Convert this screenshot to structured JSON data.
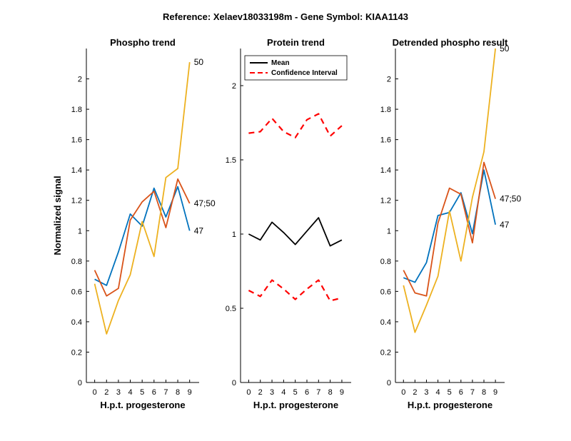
{
  "title": "Reference:  Xelaev18033198m - Gene Symbol:  KIAA1143",
  "colors": {
    "blue": "#0072BD",
    "orange": "#D95319",
    "yellow": "#EDB120",
    "mean": "#000000",
    "ci": "#FF0000"
  },
  "chart_data": [
    {
      "type": "line",
      "title": "Phospho trend",
      "xlabel": "H.p.t. progesterone",
      "ylabel": "Normalized signal",
      "x": [
        0,
        2,
        3,
        4,
        5,
        6,
        7,
        8,
        9
      ],
      "ylim": [
        0,
        2.2
      ],
      "yticks": [
        0,
        0.2,
        0.4,
        0.6,
        0.8,
        1,
        1.2,
        1.4,
        1.6,
        1.8,
        2
      ],
      "ytick_labels": [
        "0",
        "0.2",
        "0.4",
        "0.6",
        "0.8",
        "1",
        "1.2",
        "1.4",
        "1.6",
        "1.8",
        "2"
      ],
      "series": [
        {
          "name": "47",
          "color": "#0072BD",
          "values": [
            0.68,
            0.64,
            0.86,
            1.11,
            1.03,
            1.28,
            1.09,
            1.29,
            1.0
          ]
        },
        {
          "name": "47;50",
          "color": "#D95319",
          "values": [
            0.74,
            0.57,
            0.62,
            1.07,
            1.19,
            1.26,
            1.02,
            1.34,
            1.18
          ]
        },
        {
          "name": "50",
          "color": "#EDB120",
          "values": [
            0.65,
            0.32,
            0.54,
            0.71,
            1.06,
            0.83,
            1.35,
            1.41,
            2.11
          ]
        }
      ]
    },
    {
      "type": "line",
      "title": "Protein trend",
      "xlabel": "H.p.t. progesterone",
      "ylabel": "",
      "x": [
        0,
        2,
        3,
        4,
        5,
        6,
        7,
        8,
        9
      ],
      "ylim": [
        0,
        2.25
      ],
      "yticks": [
        0,
        0.5,
        1,
        1.5,
        2
      ],
      "ytick_labels": [
        "0",
        "0.5",
        "1",
        "1.5",
        "2"
      ],
      "legend": {
        "position": "top",
        "entries": [
          "Mean",
          "Confidence Interval"
        ]
      },
      "series": [
        {
          "name": "Mean",
          "color": "#000000",
          "style": "solid",
          "values": [
            1.0,
            0.96,
            1.08,
            1.01,
            0.93,
            1.02,
            1.11,
            0.92,
            0.96
          ]
        },
        {
          "name": "Confidence Interval",
          "color": "#FF0000",
          "style": "dashed",
          "values": [
            1.68,
            1.69,
            1.78,
            1.69,
            1.65,
            1.77,
            1.81,
            1.66,
            1.73
          ]
        },
        {
          "name": "Confidence Interval",
          "color": "#FF0000",
          "style": "dashed",
          "values": [
            0.62,
            0.58,
            0.69,
            0.63,
            0.56,
            0.63,
            0.69,
            0.55,
            0.57
          ]
        }
      ]
    },
    {
      "type": "line",
      "title": "Detrended phospho result",
      "xlabel": "H.p.t. progesterone",
      "ylabel": "",
      "x": [
        0,
        2,
        3,
        4,
        5,
        6,
        7,
        8,
        9
      ],
      "ylim": [
        0,
        2.2
      ],
      "yticks": [
        0,
        0.2,
        0.4,
        0.6,
        0.8,
        1,
        1.2,
        1.4,
        1.6,
        1.8,
        2
      ],
      "ytick_labels": [
        "0",
        "0.2",
        "0.4",
        "0.6",
        "0.8",
        "1",
        "1.2",
        "1.4",
        "1.6",
        "1.8",
        "2"
      ],
      "series": [
        {
          "name": "47",
          "color": "#0072BD",
          "values": [
            0.69,
            0.66,
            0.79,
            1.1,
            1.12,
            1.25,
            0.98,
            1.4,
            1.04
          ]
        },
        {
          "name": "47;50",
          "color": "#D95319",
          "values": [
            0.74,
            0.59,
            0.57,
            1.05,
            1.28,
            1.24,
            0.92,
            1.45,
            1.21
          ]
        },
        {
          "name": "50",
          "color": "#EDB120",
          "values": [
            0.64,
            0.33,
            0.51,
            0.7,
            1.13,
            0.8,
            1.22,
            1.52,
            2.2
          ]
        }
      ]
    }
  ]
}
